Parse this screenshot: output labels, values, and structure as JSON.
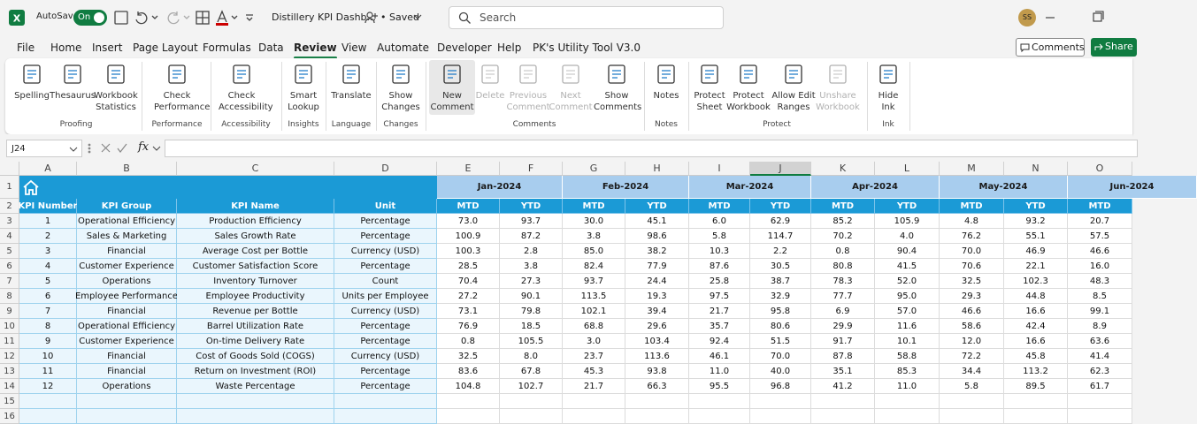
{
  "titlebar": {
    "autosave": "AutoSave",
    "toggle": "On",
    "filename": "Distillery KPI Dashb...",
    "status": "• Saved",
    "search": "Search",
    "avatar": "SS"
  },
  "tabs": [
    "File",
    "Home",
    "Insert",
    "Page Layout",
    "Formulas",
    "Data",
    "Review",
    "View",
    "Automate",
    "Developer",
    "Help",
    "PK's Utility Tool V3.0"
  ],
  "active_tab": 6,
  "comments_button": "Comments",
  "share_button": "Share",
  "ribbon": [
    {
      "label": "Proofing",
      "buttons": [
        {
          "lines": [
            "Spelling"
          ]
        },
        {
          "lines": [
            "Thesaurus"
          ]
        },
        {
          "lines": [
            "Workbook",
            "Statistics"
          ]
        }
      ]
    },
    {
      "label": "Performance",
      "buttons": [
        {
          "lines": [
            "Check",
            "Performance"
          ]
        }
      ]
    },
    {
      "label": "Accessibility",
      "buttons": [
        {
          "lines": [
            "Check",
            "Accessibility"
          ]
        }
      ]
    },
    {
      "label": "Insights",
      "buttons": [
        {
          "lines": [
            "Smart",
            "Lookup"
          ]
        }
      ]
    },
    {
      "label": "Language",
      "buttons": [
        {
          "lines": [
            "Translate"
          ]
        }
      ]
    },
    {
      "label": "Changes",
      "buttons": [
        {
          "lines": [
            "Show",
            "Changes"
          ]
        }
      ]
    },
    {
      "label": "Comments",
      "buttons": [
        {
          "lines": [
            "New",
            "Comment"
          ]
        },
        {
          "lines": [
            "Delete"
          ],
          "disabled": true
        },
        {
          "lines": [
            "Previous",
            "Comment"
          ],
          "disabled": true
        },
        {
          "lines": [
            "Next",
            "Comment"
          ],
          "disabled": true
        },
        {
          "lines": [
            "Show",
            "Comments"
          ]
        }
      ]
    },
    {
      "label": "Notes",
      "buttons": [
        {
          "lines": [
            "Notes"
          ]
        }
      ]
    },
    {
      "label": "Protect",
      "buttons": [
        {
          "lines": [
            "Protect",
            "Sheet"
          ]
        },
        {
          "lines": [
            "Protect",
            "Workbook"
          ]
        },
        {
          "lines": [
            "Allow Edit",
            "Ranges"
          ]
        },
        {
          "lines": [
            "Unshare",
            "Workbook"
          ],
          "disabled": true
        }
      ]
    },
    {
      "label": "Ink",
      "buttons": [
        {
          "lines": [
            "Hide",
            "Ink"
          ]
        }
      ]
    }
  ],
  "formula_bar": {
    "name_box": "J24",
    "fx": "fx"
  },
  "sheet": {
    "columns": [
      "A",
      "B",
      "C",
      "D",
      "E",
      "F",
      "G",
      "H",
      "I",
      "J",
      "K",
      "L",
      "M",
      "N",
      "O"
    ],
    "selected_column": 9,
    "row_numbers": [
      1,
      2,
      3,
      4,
      5,
      6,
      7,
      8,
      9,
      10,
      11,
      12,
      13,
      14,
      15,
      16
    ],
    "months": [
      "Jan-2024",
      "Feb-2024",
      "Mar-2024",
      "Apr-2024",
      "May-2024",
      "Jun-2024"
    ],
    "headers": [
      "KPI Number",
      "KPI Group",
      "KPI Name",
      "Unit"
    ],
    "sub_headers": [
      "MTD",
      "YTD",
      "MTD",
      "YTD",
      "MTD",
      "YTD",
      "MTD",
      "YTD",
      "MTD",
      "YTD",
      "MTD"
    ],
    "rows": [
      [
        "1",
        "Operational Efficiency",
        "Production Efficiency",
        "Percentage",
        "73.0",
        "93.7",
        "30.0",
        "45.1",
        "6.0",
        "62.9",
        "85.2",
        "105.9",
        "4.8",
        "93.2",
        "20.7"
      ],
      [
        "2",
        "Sales & Marketing",
        "Sales Growth Rate",
        "Percentage",
        "100.9",
        "87.2",
        "3.8",
        "98.6",
        "5.8",
        "114.7",
        "70.2",
        "4.0",
        "76.2",
        "55.1",
        "57.5"
      ],
      [
        "3",
        "Financial",
        "Average Cost per Bottle",
        "Currency (USD)",
        "100.3",
        "2.8",
        "85.0",
        "38.2",
        "10.3",
        "2.2",
        "0.8",
        "90.4",
        "70.0",
        "46.9",
        "46.6"
      ],
      [
        "4",
        "Customer Experience",
        "Customer Satisfaction Score",
        "Percentage",
        "28.5",
        "3.8",
        "82.4",
        "77.9",
        "87.6",
        "30.5",
        "80.8",
        "41.5",
        "70.6",
        "22.1",
        "16.0"
      ],
      [
        "5",
        "Operations",
        "Inventory Turnover",
        "Count",
        "70.4",
        "27.3",
        "93.7",
        "24.4",
        "25.8",
        "38.7",
        "78.3",
        "52.0",
        "32.5",
        "102.3",
        "48.3"
      ],
      [
        "6",
        "Employee Performance",
        "Employee Productivity",
        "Units per Employee",
        "27.2",
        "90.1",
        "113.5",
        "19.3",
        "97.5",
        "32.9",
        "77.7",
        "95.0",
        "29.3",
        "44.8",
        "8.5"
      ],
      [
        "7",
        "Financial",
        "Revenue per Bottle",
        "Currency (USD)",
        "73.1",
        "79.8",
        "102.1",
        "39.4",
        "21.7",
        "95.8",
        "6.9",
        "57.0",
        "46.6",
        "16.6",
        "99.1"
      ],
      [
        "8",
        "Operational Efficiency",
        "Barrel Utilization Rate",
        "Percentage",
        "76.9",
        "18.5",
        "68.8",
        "29.6",
        "35.7",
        "80.6",
        "29.9",
        "11.6",
        "58.6",
        "42.4",
        "8.9"
      ],
      [
        "9",
        "Customer Experience",
        "On-time Delivery Rate",
        "Percentage",
        "0.8",
        "105.5",
        "3.0",
        "103.4",
        "92.4",
        "51.5",
        "91.7",
        "10.1",
        "12.0",
        "16.6",
        "63.6"
      ],
      [
        "10",
        "Financial",
        "Cost of Goods Sold (COGS)",
        "Currency (USD)",
        "32.5",
        "8.0",
        "23.7",
        "113.6",
        "46.1",
        "70.0",
        "87.8",
        "58.8",
        "72.2",
        "45.8",
        "41.4"
      ],
      [
        "11",
        "Financial",
        "Return on Investment (ROI)",
        "Percentage",
        "83.6",
        "67.8",
        "45.3",
        "93.8",
        "11.0",
        "40.0",
        "35.1",
        "85.3",
        "34.4",
        "113.2",
        "62.3"
      ],
      [
        "12",
        "Operations",
        "Waste Percentage",
        "Percentage",
        "104.8",
        "102.7",
        "21.7",
        "66.3",
        "95.5",
        "96.8",
        "41.2",
        "11.0",
        "5.8",
        "89.5",
        "61.7"
      ]
    ]
  }
}
